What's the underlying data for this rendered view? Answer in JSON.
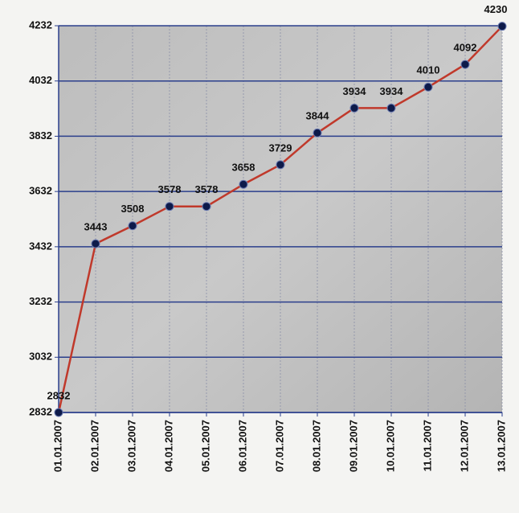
{
  "chart_data": {
    "type": "line",
    "categories": [
      "01.01.2007",
      "02.01.2007",
      "03.01.2007",
      "04.01.2007",
      "05.01.2007",
      "06.01.2007",
      "07.01.2007",
      "08.01.2007",
      "09.01.2007",
      "10.01.2007",
      "11.01.2007",
      "12.01.2007",
      "13.01.2007"
    ],
    "values": [
      2832,
      3443,
      3508,
      3578,
      3578,
      3658,
      3729,
      3844,
      3934,
      3934,
      4010,
      4092,
      4230
    ],
    "color": "#c0392b",
    "marker_color": "#0d1a4a",
    "ylim": [
      2832,
      4232
    ],
    "yticks": [
      2832,
      3032,
      3232,
      3432,
      3632,
      3832,
      4032,
      4232
    ],
    "grid": true
  }
}
